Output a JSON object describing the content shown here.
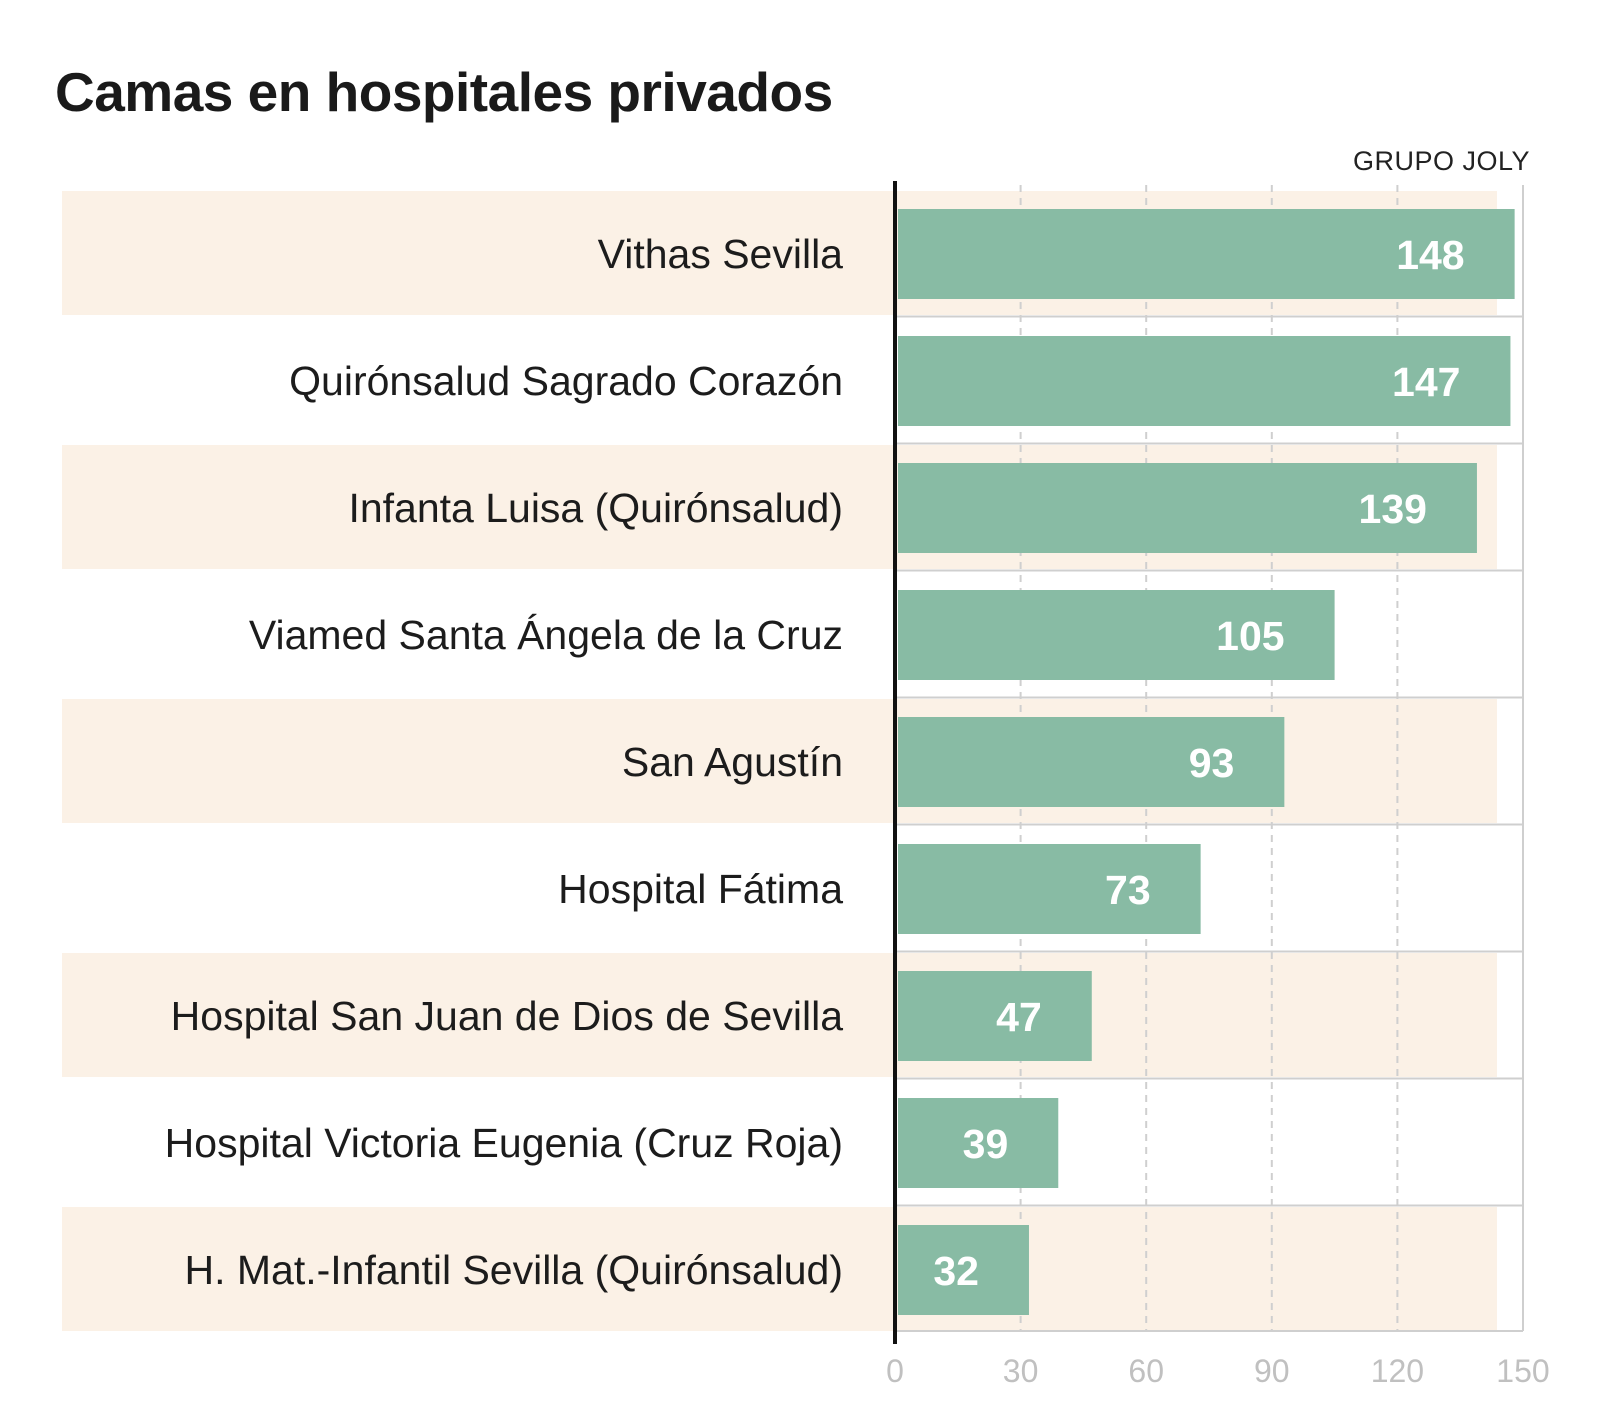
{
  "chart_data": {
    "type": "bar",
    "orientation": "horizontal",
    "title": "Camas en hospitales privados",
    "credit": "GRUPO JOLY",
    "categories": [
      "Vithas Sevilla",
      "Quirónsalud Sagrado Corazón",
      "Infanta Luisa (Quirónsalud)",
      "Viamed Santa Ángela de la Cruz",
      "San Agustín",
      "Hospital Fátima",
      "Hospital San Juan de Dios de Sevilla",
      "Hospital Victoria Eugenia (Cruz Roja)",
      "H. Mat.-Infantil Sevilla (Quirónsalud)"
    ],
    "values": [
      148,
      147,
      139,
      105,
      93,
      73,
      47,
      39,
      32
    ],
    "xlim": [
      0,
      150
    ],
    "xticks": [
      0,
      30,
      60,
      90,
      120,
      150
    ],
    "xlabel": "",
    "ylabel": "",
    "grid": true
  },
  "colors": {
    "bar": "#88bba4",
    "stripe": "#fbf1e6",
    "grid": "#cfcfcf",
    "axis": "#111111"
  }
}
